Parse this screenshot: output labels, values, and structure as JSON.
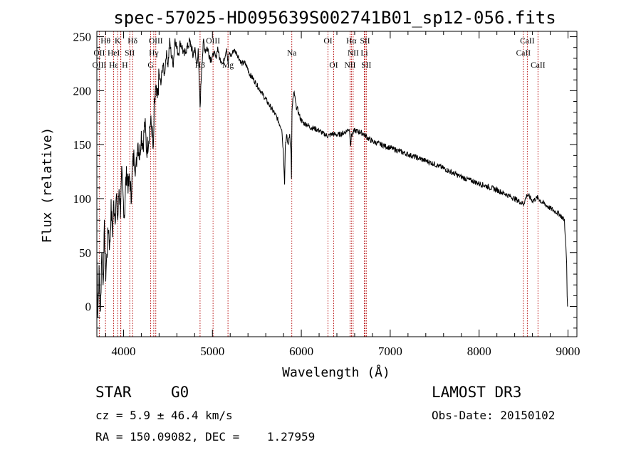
{
  "chart_data": {
    "type": "line",
    "title": "spec-57025-HD095639S002741B01_sp12-056.fits",
    "xlabel": "Wavelength (Å)",
    "ylabel": "Flux (relative)",
    "xlim": [
      3700,
      9100
    ],
    "ylim": [
      -28,
      255
    ],
    "xticks": [
      4000,
      5000,
      6000,
      7000,
      8000,
      9000
    ],
    "yticks": [
      0,
      50,
      100,
      150,
      200,
      250
    ],
    "x_minor_step": 200,
    "y_minor_step": 10,
    "grid": false,
    "series": [
      {
        "x": [
          3700,
          3710,
          3725,
          3740,
          3755,
          3770,
          3785,
          3800,
          3815,
          3830,
          3845,
          3860,
          3875,
          3890,
          3905,
          3920,
          3935,
          3950,
          3965,
          3980,
          3995,
          4010,
          4025,
          4040,
          4055,
          4070,
          4085,
          4100,
          4120,
          4140,
          4160,
          4180,
          4200,
          4220,
          4240,
          4260,
          4280,
          4300,
          4320,
          4335,
          4345,
          4360,
          4380,
          4400,
          4420,
          4440,
          4460,
          4480,
          4500,
          4520,
          4540,
          4560,
          4580,
          4600,
          4620,
          4640,
          4660,
          4680,
          4700,
          4720,
          4740,
          4760,
          4780,
          4800,
          4820,
          4840,
          4861,
          4880,
          4900,
          4920,
          4940,
          4960,
          4980,
          5000,
          5020,
          5040,
          5060,
          5080,
          5100,
          5120,
          5140,
          5160,
          5175,
          5190,
          5210,
          5240,
          5270,
          5300,
          5330,
          5360,
          5390,
          5420,
          5450,
          5480,
          5510,
          5540,
          5570,
          5600,
          5630,
          5660,
          5690,
          5720,
          5750,
          5780,
          5800,
          5812,
          5820,
          5835,
          5850,
          5870,
          5885,
          5889,
          5895,
          5905,
          5920,
          5940,
          5960,
          5990,
          6020,
          6060,
          6100,
          6150,
          6200,
          6250,
          6300,
          6350,
          6400,
          6450,
          6500,
          6540,
          6555,
          6563,
          6575,
          6600,
          6650,
          6700,
          6750,
          6800,
          6900,
          7000,
          7100,
          7200,
          7300,
          7400,
          7500,
          7600,
          7700,
          7800,
          7900,
          8000,
          8100,
          8200,
          8300,
          8400,
          8500,
          8542,
          8600,
          8662,
          8700,
          8800,
          8900,
          8960,
          8985,
          8990,
          8995
        ],
        "y": [
          45,
          -5,
          30,
          -10,
          55,
          20,
          70,
          30,
          50,
          75,
          55,
          90,
          70,
          95,
          85,
          100,
          80,
          110,
          90,
          120,
          100,
          85,
          115,
          125,
          110,
          120,
          100,
          130,
          140,
          125,
          155,
          140,
          160,
          150,
          170,
          145,
          155,
          170,
          165,
          140,
          180,
          200,
          190,
          215,
          205,
          225,
          215,
          235,
          225,
          245,
          232,
          225,
          250,
          238,
          235,
          245,
          240,
          232,
          238,
          240,
          245,
          242,
          232,
          240,
          225,
          235,
          185,
          225,
          245,
          238,
          240,
          235,
          230,
          232,
          235,
          230,
          240,
          230,
          228,
          225,
          232,
          240,
          225,
          235,
          232,
          238,
          235,
          230,
          225,
          226,
          222,
          215,
          212,
          208,
          204,
          200,
          196,
          192,
          188,
          184,
          180,
          176,
          170,
          165,
          140,
          115,
          150,
          158,
          150,
          160,
          140,
          120,
          180,
          192,
          198,
          186,
          182,
          174,
          170,
          169,
          166,
          165,
          163,
          160,
          158,
          160,
          159,
          160,
          162,
          165,
          150,
          158,
          160,
          163,
          162,
          160,
          156,
          153,
          150,
          147,
          144,
          141,
          138,
          135,
          132,
          128,
          124,
          120,
          117,
          114,
          111,
          108,
          104,
          100,
          95,
          104,
          98,
          101,
          97,
          91,
          86,
          80,
          40,
          8,
          0
        ]
      }
    ],
    "line_labels": [
      {
        "label": "Hθ",
        "wave": 3797,
        "row": 0,
        "dx": 0
      },
      {
        "label": "K",
        "wave": 3934,
        "row": 0,
        "dx": 0
      },
      {
        "label": "Hδ",
        "wave": 4102,
        "row": 0,
        "dx": 0
      },
      {
        "label": "OIII",
        "wave": 4363,
        "row": 0,
        "dx": 0
      },
      {
        "label": "OIII",
        "wave": 5007,
        "row": 0,
        "dx": 0
      },
      {
        "label": "OI",
        "wave": 6300,
        "row": 0,
        "dx": 0
      },
      {
        "label": "Hα",
        "wave": 6563,
        "row": 0,
        "dx": 0
      },
      {
        "label": "SII",
        "wave": 6717,
        "row": 0,
        "dx": 0
      },
      {
        "label": "CaII",
        "wave": 8542,
        "row": 0,
        "dx": 0
      },
      {
        "label": "OII",
        "wave": 3727,
        "row": 1,
        "dx": 0
      },
      {
        "label": "HeI",
        "wave": 3889,
        "row": 1,
        "dx": 0
      },
      {
        "label": "SII",
        "wave": 4070,
        "row": 1,
        "dx": 0
      },
      {
        "label": "Hγ",
        "wave": 4340,
        "row": 1,
        "dx": 0
      },
      {
        "label": "Na",
        "wave": 5893,
        "row": 1,
        "dx": 0
      },
      {
        "label": "NII",
        "wave": 6583,
        "row": 1,
        "dx": 0
      },
      {
        "label": "Li",
        "wave": 6708,
        "row": 1,
        "dx": 0
      },
      {
        "label": "CaII",
        "wave": 8498,
        "row": 1,
        "dx": 0
      },
      {
        "label": "OIII",
        "wave": 3727,
        "row": 2,
        "dx": 0
      },
      {
        "label": "Hε",
        "wave": 3970,
        "row": 2,
        "dx": -10
      },
      {
        "label": "H",
        "wave": 3968,
        "row": 2,
        "dx": 6
      },
      {
        "label": "G",
        "wave": 4305,
        "row": 2,
        "dx": 0
      },
      {
        "label": "Hβ",
        "wave": 4861,
        "row": 2,
        "dx": 0
      },
      {
        "label": "Mg",
        "wave": 5175,
        "row": 2,
        "dx": 0
      },
      {
        "label": "OI",
        "wave": 6364,
        "row": 2,
        "dx": 0
      },
      {
        "label": "NII",
        "wave": 6548,
        "row": 2,
        "dx": 0
      },
      {
        "label": "SII",
        "wave": 6731,
        "row": 2,
        "dx": 0
      },
      {
        "label": "CaII",
        "wave": 8662,
        "row": 2,
        "dx": 0
      }
    ]
  },
  "info": {
    "object_class": "STAR",
    "subclass": "G0",
    "survey": "LAMOST DR3",
    "cz": "cz = 5.9 ± 46.4 km/s",
    "obs_date": "Obs-Date: 20150102",
    "coords": "RA = 150.09082, DEC =    1.27959"
  }
}
